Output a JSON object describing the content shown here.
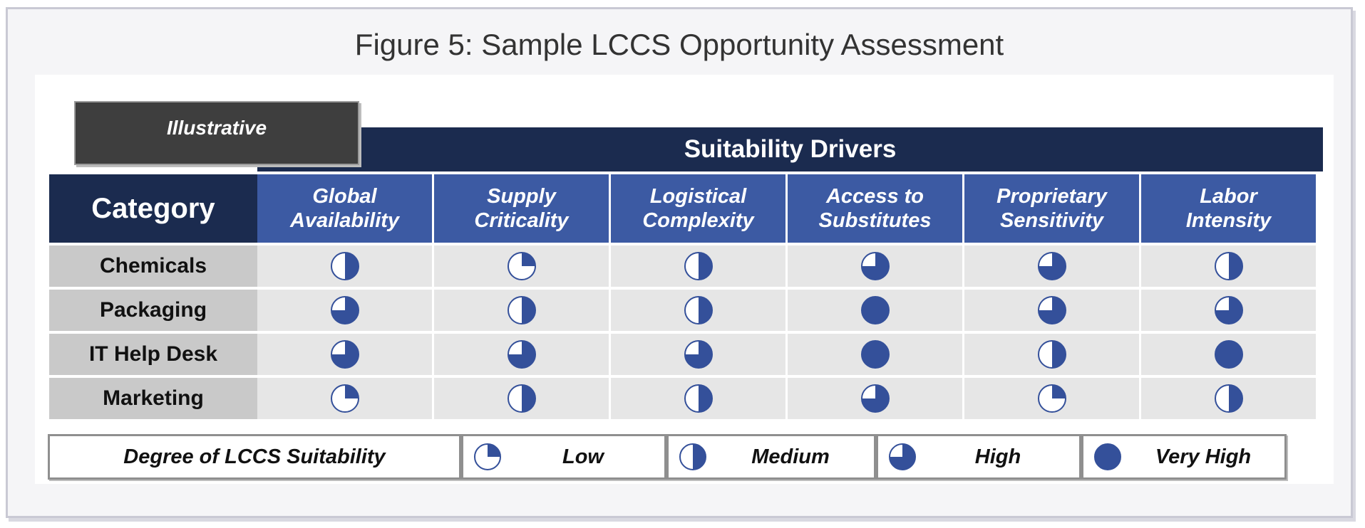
{
  "title": "Figure 5: Sample LCCS Opportunity Assessment",
  "badge": "Illustrative",
  "drivers_header": "Suitability Drivers",
  "category_header": "Category",
  "colors": {
    "dark_navy": "#1b2b4f",
    "header_blue": "#3c5aa3",
    "pie_fill": "#34509a",
    "cell_bg": "#e6e6e6",
    "label_bg": "#c9c9c9"
  },
  "chart_data": {
    "type": "table",
    "title": "Figure 5: Sample LCCS Opportunity Assessment",
    "columns": [
      {
        "line1": "Global",
        "line2": "Availability"
      },
      {
        "line1": "Supply",
        "line2": "Criticality"
      },
      {
        "line1": "Logistical",
        "line2": "Complexity"
      },
      {
        "line1": "Access to",
        "line2": "Substitutes"
      },
      {
        "line1": "Proprietary",
        "line2": "Sensitivity"
      },
      {
        "line1": "Labor",
        "line2": "Intensity"
      }
    ],
    "rows": [
      {
        "category": "Chemicals",
        "ratings": [
          2,
          1,
          2,
          3,
          3,
          2
        ]
      },
      {
        "category": "Packaging",
        "ratings": [
          3,
          2,
          2,
          4,
          3,
          3
        ]
      },
      {
        "category": "IT Help Desk",
        "ratings": [
          3,
          3,
          3,
          4,
          2,
          4
        ]
      },
      {
        "category": "Marketing",
        "ratings": [
          1,
          2,
          2,
          3,
          1,
          2
        ]
      }
    ],
    "scale": [
      {
        "level": 1,
        "label": "Low",
        "fill_fraction": 0.25
      },
      {
        "level": 2,
        "label": "Medium",
        "fill_fraction": 0.5
      },
      {
        "level": 3,
        "label": "High",
        "fill_fraction": 0.75
      },
      {
        "level": 4,
        "label": "Very High",
        "fill_fraction": 1.0
      }
    ]
  },
  "legend": {
    "title": "Degree of LCCS Suitability",
    "items": [
      "Low",
      "Medium",
      "High",
      "Very High"
    ]
  }
}
